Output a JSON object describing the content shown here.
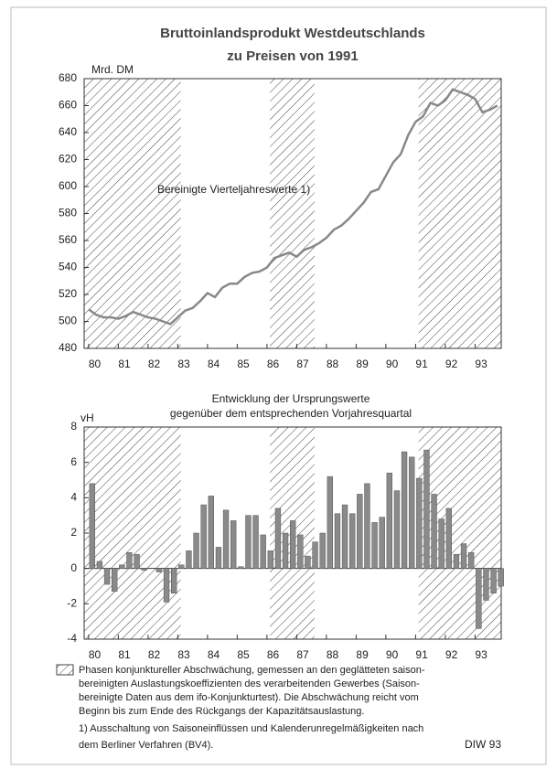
{
  "chart_data": [
    {
      "type": "line",
      "title": "Bruttoinlandsprodukt Westdeutschlands",
      "subtitle": "zu Preisen von 1991",
      "y_label": "Mrd. DM",
      "annotation": "Bereinigte Vierteljahreswerte 1)",
      "x": [
        1980,
        1980.25,
        1980.5,
        1980.75,
        1981,
        1981.25,
        1981.5,
        1981.75,
        1982,
        1982.25,
        1982.5,
        1982.75,
        1983,
        1983.25,
        1983.5,
        1983.75,
        1984,
        1984.25,
        1984.5,
        1984.75,
        1985,
        1985.25,
        1985.5,
        1985.75,
        1986,
        1986.25,
        1986.5,
        1986.75,
        1987,
        1987.25,
        1987.5,
        1987.75,
        1988,
        1988.25,
        1988.5,
        1988.75,
        1989,
        1989.25,
        1989.5,
        1989.75,
        1990,
        1990.25,
        1990.5,
        1990.75,
        1991,
        1991.25,
        1991.5,
        1991.75,
        1992,
        1992.25,
        1992.5,
        1992.75,
        1993,
        1993.25,
        1993.5,
        1993.75
      ],
      "series": [
        {
          "color": "#888888",
          "values": [
            509,
            505,
            503,
            503,
            502,
            504,
            507,
            505,
            503,
            502,
            500,
            498,
            503,
            508,
            510,
            515,
            521,
            518,
            525,
            528,
            528,
            533,
            536,
            537,
            540,
            547,
            549,
            551,
            548,
            553,
            555,
            558,
            562,
            568,
            571,
            576,
            582,
            588,
            596,
            598,
            608,
            618,
            624,
            638,
            648,
            652,
            662,
            660,
            664,
            672,
            670,
            668,
            665,
            655,
            657,
            660
          ]
        }
      ],
      "shaded_regions": [
        [
          1979.85,
          1983.1
        ],
        [
          1986.1,
          1987.6
        ],
        [
          1991.1,
          1993.88
        ]
      ],
      "xlim": [
        1979.85,
        1993.88
      ],
      "ylim": [
        480,
        680
      ],
      "yticks": [
        480,
        500,
        520,
        540,
        560,
        580,
        600,
        620,
        640,
        660,
        680
      ],
      "xticks": [
        {
          "value": 1980,
          "label": "80"
        },
        {
          "value": 1981,
          "label": "81"
        },
        {
          "value": 1982,
          "label": "82"
        },
        {
          "value": 1983,
          "label": "83"
        },
        {
          "value": 1984,
          "label": "84"
        },
        {
          "value": 1985,
          "label": "85"
        },
        {
          "value": 1986,
          "label": "86"
        },
        {
          "value": 1987,
          "label": "87"
        },
        {
          "value": 1988,
          "label": "88"
        },
        {
          "value": 1989,
          "label": "89"
        },
        {
          "value": 1990,
          "label": "90"
        },
        {
          "value": 1991,
          "label": "91"
        },
        {
          "value": 1992,
          "label": "92"
        },
        {
          "value": 1993,
          "label": "93"
        }
      ],
      "grid": false
    },
    {
      "type": "bar",
      "title": "Entwicklung der Ursprungswerte",
      "subtitle": "gegenüber dem entsprechenden Vorjahresquartal",
      "y_label": "vH",
      "x": [
        1980,
        1980.25,
        1980.5,
        1980.75,
        1981,
        1981.25,
        1981.5,
        1981.75,
        1982,
        1982.25,
        1982.5,
        1982.75,
        1983,
        1983.25,
        1983.5,
        1983.75,
        1984,
        1984.25,
        1984.5,
        1984.75,
        1985,
        1985.25,
        1985.5,
        1985.75,
        1986,
        1986.25,
        1986.5,
        1986.75,
        1987,
        1987.25,
        1987.5,
        1987.75,
        1988,
        1988.25,
        1988.5,
        1988.75,
        1989,
        1989.25,
        1989.5,
        1989.75,
        1990,
        1990.25,
        1990.5,
        1990.75,
        1991,
        1991.25,
        1991.5,
        1991.75,
        1992,
        1992.25,
        1992.5,
        1992.75,
        1993,
        1993.25,
        1993.5,
        1993.75
      ],
      "series": [
        {
          "color": "#8a8a8a",
          "values": [
            4.8,
            0.4,
            -0.9,
            -1.3,
            0.2,
            0.9,
            0.8,
            -0.1,
            0,
            -0.2,
            -1.9,
            -1.4,
            0.2,
            1,
            2,
            3.6,
            4.1,
            1.2,
            3.3,
            2.7,
            0.1,
            3,
            3,
            1.9,
            1,
            3.4,
            2,
            2.7,
            1.9,
            0.7,
            1.5,
            2,
            5.2,
            3.1,
            3.6,
            3.1,
            4.2,
            4.8,
            2.6,
            2.9,
            5.4,
            4.4,
            6.6,
            6.3,
            5.1,
            6.7,
            4.2,
            2.8,
            3.4,
            0.8,
            1.4,
            0.9,
            -3.4,
            -1.8,
            -1.4,
            -1
          ]
        }
      ],
      "shaded_regions": [
        [
          1979.85,
          1983.1
        ],
        [
          1986.1,
          1987.6
        ],
        [
          1991.1,
          1993.88
        ]
      ],
      "xlim": [
        1979.85,
        1993.88
      ],
      "ylim": [
        -4,
        8
      ],
      "yticks": [
        -4,
        -2,
        0,
        2,
        4,
        6,
        8
      ],
      "xticks": [
        {
          "value": 1980,
          "label": "80"
        },
        {
          "value": 1981,
          "label": "81"
        },
        {
          "value": 1982,
          "label": "82"
        },
        {
          "value": 1983,
          "label": "83"
        },
        {
          "value": 1984,
          "label": "84"
        },
        {
          "value": 1985,
          "label": "85"
        },
        {
          "value": 1986,
          "label": "86"
        },
        {
          "value": 1987,
          "label": "87"
        },
        {
          "value": 1988,
          "label": "88"
        },
        {
          "value": 1989,
          "label": "89"
        },
        {
          "value": 1990,
          "label": "90"
        },
        {
          "value": 1991,
          "label": "91"
        },
        {
          "value": 1992,
          "label": "92"
        },
        {
          "value": 1993,
          "label": "93"
        }
      ],
      "grid": false
    }
  ],
  "notes": [
    "Phasen konjunktureller Abschwächung, gemessen an den geglätteten saison-",
    "bereinigten Auslastungskoeffizienten des verarbeitenden Gewerbes (Saison-",
    "bereinigte Daten aus dem ifo-Konjunkturtest). Die Abschwächung reicht vom",
    "Beginn bis zum Ende des Rückgangs der Kapazitätsauslastung.",
    "1) Ausschaltung von Saisoneinflüssen und Kalenderunregelmäßigkeiten nach",
    "dem Berliner Verfahren (BV4)."
  ],
  "source": "DIW 93"
}
